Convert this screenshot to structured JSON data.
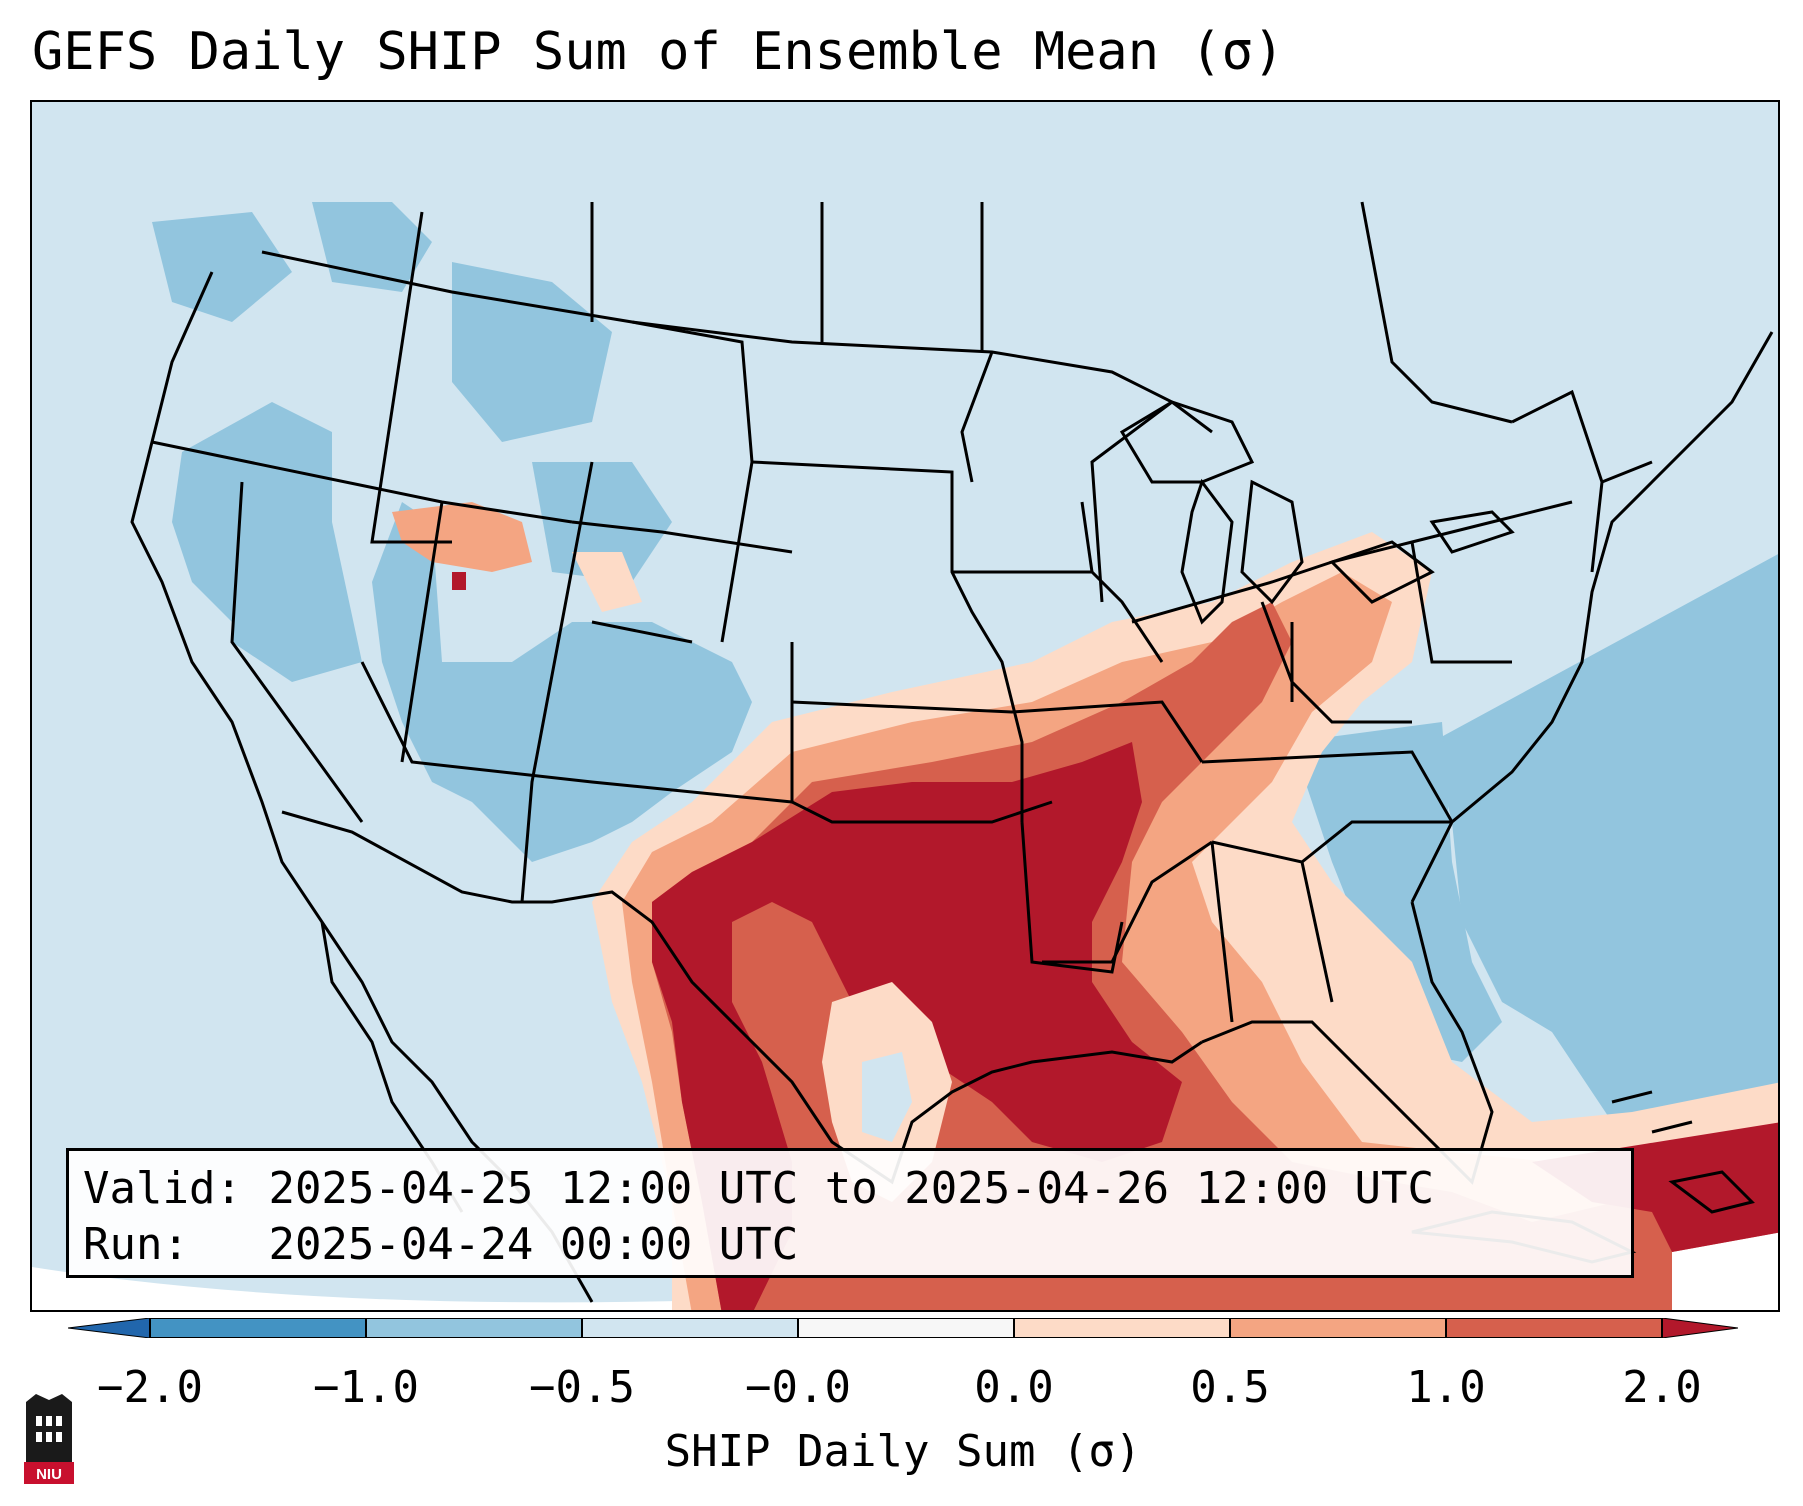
{
  "title": "GEFS Daily SHIP Sum of Ensemble Mean (σ)",
  "info": {
    "valid_label": "Valid:",
    "valid_value": "2025-04-25 12:00 UTC to 2025-04-26 12:00 UTC",
    "run_label": "Run:",
    "run_value": "2025-04-24 00:00 UTC"
  },
  "colorbar": {
    "label": "SHIP Daily Sum (σ)",
    "ticks": [
      "−2.0",
      "−1.0",
      "−0.5",
      "−0.0",
      "0.0",
      "0.5",
      "1.0",
      "2.0"
    ],
    "colors": [
      "#4393c3",
      "#92c5de",
      "#d1e5f0",
      "#f7f7f7",
      "#fddbc7",
      "#f4a582",
      "#d6604d",
      "#b2182b"
    ]
  },
  "logo": {
    "text": "NIU"
  },
  "colors": {
    "strong_negative": "#4393c3",
    "negative": "#92c5de",
    "slight_negative": "#d1e5f0",
    "slight_positive": "#fddbc7",
    "positive": "#f4a582",
    "strong_positive": "#d6604d",
    "max_positive": "#b2182b"
  }
}
